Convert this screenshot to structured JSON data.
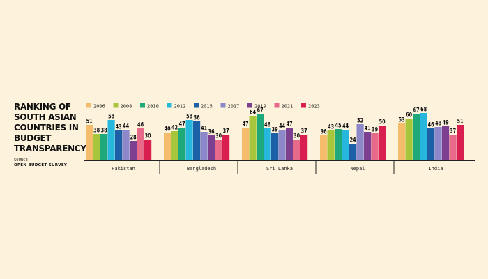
{
  "title_lines": [
    "RANKING OF",
    "SOUTH ASIAN",
    "COUNTRIES IN",
    "BUDGET",
    "TRANSPARENCY"
  ],
  "source": {
    "label": "SOURCE",
    "value": "OPEN BUDGET SURVEY"
  },
  "chart_data": {
    "type": "bar",
    "categories": [
      "Pakistan",
      "Bangladesh",
      "Sri Lanka",
      "Nepal",
      "India"
    ],
    "series": [
      {
        "name": "2006",
        "color": "#f5bd6b",
        "values": [
          51,
          40,
          47,
          36,
          53
        ]
      },
      {
        "name": "2008",
        "color": "#a8c63c",
        "values": [
          38,
          42,
          64,
          43,
          60
        ]
      },
      {
        "name": "2010",
        "color": "#1fa97a",
        "values": [
          38,
          47,
          67,
          45,
          67
        ]
      },
      {
        "name": "2012",
        "color": "#27b6dc",
        "values": [
          58,
          58,
          46,
          44,
          68
        ]
      },
      {
        "name": "2015",
        "color": "#1c60a8",
        "values": [
          43,
          56,
          39,
          24,
          46
        ]
      },
      {
        "name": "2017",
        "color": "#8c88c9",
        "values": [
          44,
          41,
          44,
          52,
          48
        ]
      },
      {
        "name": "2019",
        "color": "#7d3f8f",
        "values": [
          28,
          36,
          47,
          41,
          49
        ]
      },
      {
        "name": "2021",
        "color": "#e86a8a",
        "values": [
          46,
          30,
          30,
          39,
          37
        ]
      },
      {
        "name": "2023",
        "color": "#d91e50",
        "values": [
          30,
          37,
          37,
          50,
          51
        ]
      }
    ],
    "xlabel": "",
    "ylabel": "",
    "legend": "top",
    "grid": false
  }
}
